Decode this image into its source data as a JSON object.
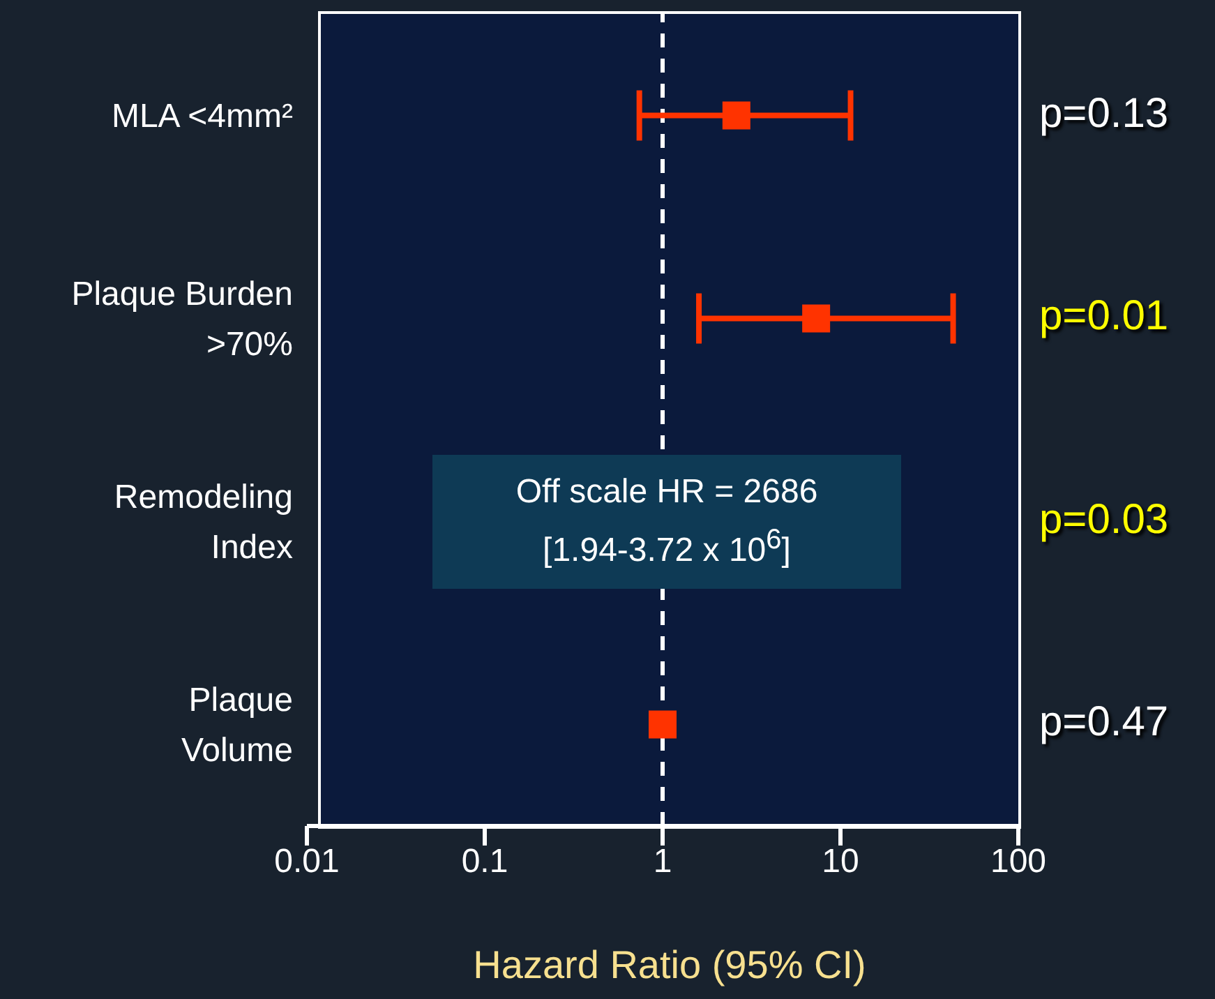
{
  "chart_data": {
    "type": "scatter",
    "orientation": "horizontal",
    "categories": [
      "MLA <4mm²",
      "Plaque Burden >70%",
      "Remodeling Index",
      "Plaque Volume"
    ],
    "values": [
      2.6,
      7.3,
      null,
      1.0
    ],
    "errors": [
      [
        0.74,
        11.4
      ],
      [
        1.6,
        43
      ],
      null,
      null
    ],
    "color": "#ff3300",
    "marker": "square",
    "log": "x",
    "xlim": [
      0.01,
      100
    ],
    "xticks": [
      0.01,
      0.1,
      1,
      10,
      100
    ],
    "xlabel": "Hazard Ratio (95% CI)",
    "ref_lines": [
      {
        "axis": "x",
        "value": 1,
        "color": "#ffffff",
        "line_style": "dashed"
      }
    ],
    "annotations": [
      "p=0.13",
      "p=0.01",
      "p=0.03",
      "p=0.47",
      "Off scale HR = 2686\n[1.94-3.72 x 10$^{6}$]"
    ]
  }
}
